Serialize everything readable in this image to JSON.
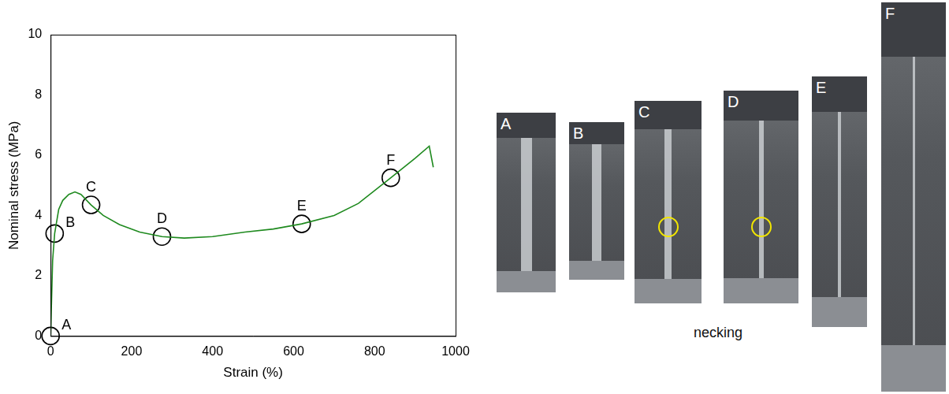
{
  "chart_data": {
    "type": "line",
    "xlabel": "Strain (%)",
    "ylabel": "Nominal stress (MPa)",
    "x": [
      0,
      5,
      10,
      20,
      30,
      45,
      60,
      75,
      100,
      130,
      170,
      220,
      275,
      330,
      400,
      480,
      550,
      620,
      700,
      760,
      840,
      900,
      935,
      945
    ],
    "values": [
      0,
      2.5,
      3.4,
      4.2,
      4.5,
      4.7,
      4.78,
      4.7,
      4.35,
      4.0,
      3.7,
      3.45,
      3.3,
      3.25,
      3.3,
      3.45,
      3.55,
      3.72,
      4.0,
      4.4,
      5.25,
      5.9,
      6.3,
      5.6
    ],
    "color": "#1f8a1f",
    "xlim": [
      0,
      1000
    ],
    "xticks": [
      0,
      200,
      400,
      600,
      800,
      1000
    ],
    "ylim": [
      0,
      10
    ],
    "yticks": [
      0,
      2,
      4,
      6,
      8,
      10
    ],
    "grid": false,
    "annotations": [
      {
        "text": "A",
        "x": 0,
        "y": 0
      },
      {
        "text": "B",
        "x": 10,
        "y": 3.4
      },
      {
        "text": "C",
        "x": 100,
        "y": 4.35
      },
      {
        "text": "D",
        "x": 275,
        "y": 3.3
      },
      {
        "text": "E",
        "x": 620,
        "y": 3.72
      },
      {
        "text": "F",
        "x": 840,
        "y": 5.25
      }
    ]
  },
  "photos": {
    "panels": [
      {
        "label": "A"
      },
      {
        "label": "B"
      },
      {
        "label": "C"
      },
      {
        "label": "D"
      },
      {
        "label": "E"
      },
      {
        "label": "F"
      }
    ],
    "caption": "necking"
  }
}
